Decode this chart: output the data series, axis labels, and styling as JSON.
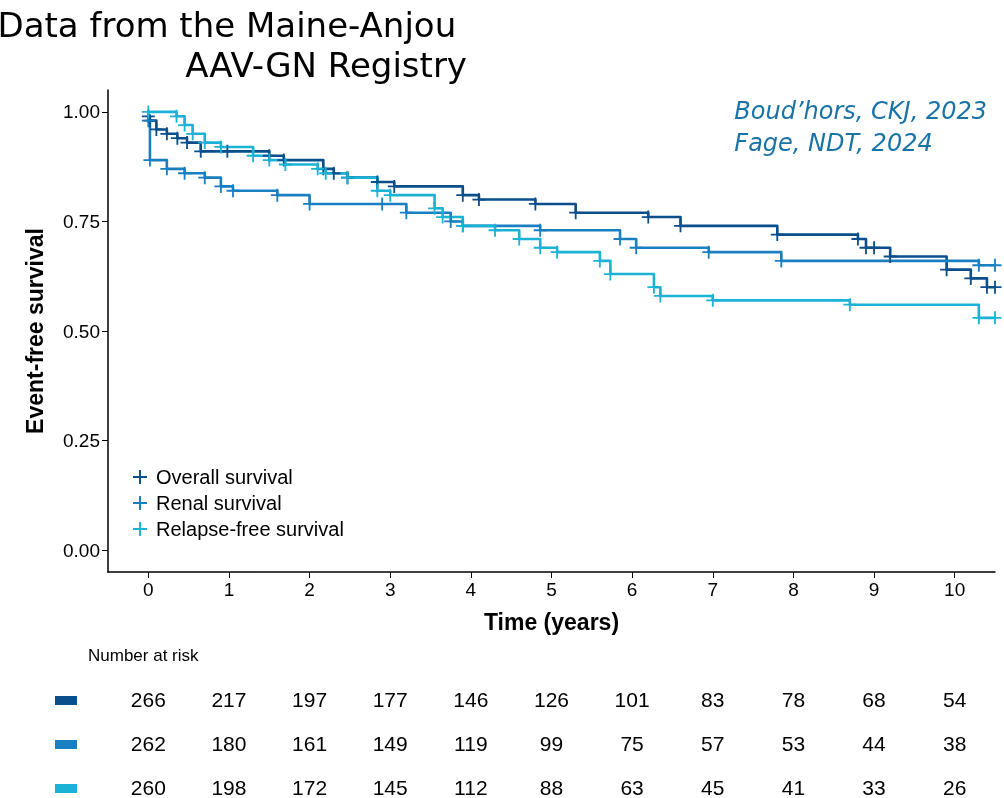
{
  "chart_data": {
    "type": "step",
    "title": "Data from the Maine-Anjou AAV-GN Registry",
    "subtitle": "Boud’hors, CKJ, 2023\nFage, NDT, 2024",
    "xlabel": "Time (years)",
    "ylabel": "Event-free survival",
    "xlim": [
      -0.5,
      10.5
    ],
    "xticks": [
      0,
      1,
      2,
      3,
      4,
      5,
      6,
      7,
      8,
      9,
      10
    ],
    "ylim": [
      -0.05,
      1.05
    ],
    "yticks": [
      {
        "value": 0,
        "label": "0.00"
      },
      {
        "value": 0.25,
        "label": "0.25"
      },
      {
        "value": 0.5,
        "label": "0.50"
      },
      {
        "value": 0.75,
        "label": "0.75"
      },
      {
        "value": 1,
        "label": "1.00"
      }
    ],
    "grid": false,
    "legend": "bottom left",
    "marker": "cross",
    "line_style": "solid",
    "annotations": [
      "Number at risk",
      "266 217 197 177 146 126 101 83 78 68 54",
      "262 180 161 149 119 99 75 57 53 44 38",
      "260 198 172 145 112 88 63 45 41 33 26"
    ],
    "series": [
      {
        "name": "Overall survival",
        "color": "#0a4f8c",
        "x": [
          0,
          0.02,
          0.1,
          0.23,
          0.36,
          0.48,
          0.65,
          0.98,
          1.5,
          1.68,
          2.17,
          2.3,
          2.47,
          2.84,
          3.05,
          3.9,
          4.1,
          4.8,
          5.3,
          6.2,
          6.6,
          7.8,
          8.8,
          8.9,
          9.0,
          9.2,
          9.9,
          10.2,
          10.4,
          10.5
        ],
        "values": [
          0.99,
          0.98,
          0.96,
          0.95,
          0.94,
          0.93,
          0.91,
          0.91,
          0.9,
          0.89,
          0.87,
          0.86,
          0.85,
          0.84,
          0.83,
          0.81,
          0.8,
          0.79,
          0.77,
          0.76,
          0.74,
          0.72,
          0.71,
          0.69,
          0.69,
          0.67,
          0.64,
          0.62,
          0.6,
          0.6
        ]
      },
      {
        "name": "Renal survival",
        "color": "#1a7fc1",
        "x": [
          0,
          0.02,
          0.23,
          0.45,
          0.7,
          0.9,
          1.05,
          1.6,
          2.0,
          2.9,
          3.2,
          3.75,
          3.9,
          4.86,
          5.85,
          6.05,
          6.95,
          7.85,
          10.3,
          10.5
        ],
        "values": [
          0.98,
          0.89,
          0.87,
          0.86,
          0.85,
          0.83,
          0.82,
          0.81,
          0.79,
          0.79,
          0.77,
          0.75,
          0.74,
          0.73,
          0.71,
          0.69,
          0.68,
          0.66,
          0.65,
          0.65
        ]
      },
      {
        "name": "Relapse-free survival",
        "color": "#1ab3d6",
        "x": [
          0,
          0.35,
          0.45,
          0.55,
          0.7,
          0.9,
          1.3,
          1.5,
          1.7,
          2.1,
          2.2,
          2.47,
          2.84,
          3.0,
          3.55,
          3.65,
          3.9,
          4.3,
          4.6,
          4.86,
          5.07,
          5.6,
          5.73,
          6.27,
          6.35,
          7.0,
          8.7,
          10.3,
          10.5
        ],
        "values": [
          1.0,
          0.99,
          0.97,
          0.95,
          0.93,
          0.92,
          0.9,
          0.89,
          0.88,
          0.87,
          0.86,
          0.85,
          0.82,
          0.81,
          0.78,
          0.76,
          0.74,
          0.73,
          0.71,
          0.69,
          0.68,
          0.66,
          0.63,
          0.6,
          0.58,
          0.57,
          0.56,
          0.53,
          0.53
        ]
      }
    ]
  }
}
